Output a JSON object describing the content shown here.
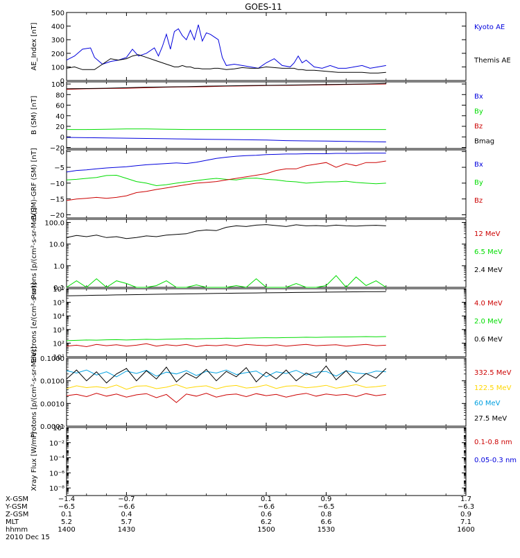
{
  "title": "GOES-11",
  "chart_data": [
    {
      "type": "line",
      "ylabel": "AE_Index [nT]",
      "ylim": [
        0,
        500
      ],
      "log": false,
      "yticks": [
        0,
        100,
        200,
        300,
        400,
        500
      ],
      "ytick_labels": [
        "0",
        "100",
        "200",
        "300",
        "400",
        "500"
      ],
      "x": [
        1400,
        1404,
        1408,
        1412,
        1414,
        1418,
        1422,
        1426,
        1430,
        1433,
        1436,
        1440,
        1444,
        1446,
        1448,
        1450,
        1452,
        1454,
        1456,
        1458,
        1460,
        1462,
        1464,
        1466,
        1468,
        1470,
        1472,
        1474,
        1476,
        1478,
        1480,
        1484,
        1488,
        1492,
        1496,
        1500,
        1504,
        1508,
        1512,
        1514,
        1516,
        1518,
        1520,
        1524,
        1528,
        1532,
        1536,
        1540,
        1544,
        1548,
        1552,
        1556,
        1560
      ],
      "series": [
        {
          "name": "Kyoto AE",
          "color": "#0000dd",
          "values": [
            150,
            180,
            230,
            240,
            170,
            120,
            140,
            150,
            170,
            230,
            180,
            200,
            240,
            180,
            250,
            340,
            230,
            360,
            380,
            330,
            300,
            370,
            300,
            410,
            290,
            350,
            340,
            320,
            300,
            170,
            110,
            120,
            110,
            100,
            90,
            130,
            160,
            110,
            100,
            130,
            180,
            130,
            150,
            100,
            90,
            110,
            90,
            90,
            100,
            110,
            90,
            100,
            110
          ]
        },
        {
          "name": "Themis AE",
          "color": "#000000",
          "values": [
            90,
            100,
            80,
            80,
            80,
            120,
            160,
            150,
            160,
            180,
            190,
            170,
            150,
            140,
            130,
            120,
            110,
            100,
            100,
            110,
            100,
            100,
            90,
            90,
            85,
            85,
            85,
            90,
            90,
            85,
            80,
            85,
            95,
            90,
            90,
            100,
            95,
            90,
            90,
            90,
            80,
            80,
            75,
            75,
            70,
            65,
            60,
            60,
            60,
            60,
            55,
            55,
            60
          ]
        }
      ]
    },
    {
      "type": "line",
      "ylabel": "B (SM) [nT]",
      "ylim": [
        -22,
        104
      ],
      "log": false,
      "yticks": [
        -20,
        0,
        20,
        40,
        60,
        80,
        100
      ],
      "ytick_labels": [
        "−20",
        "0",
        "20",
        "40",
        "60",
        "80",
        "100"
      ],
      "x": [
        1400,
        1410,
        1420,
        1430,
        1440,
        1450,
        1460,
        1470,
        1480,
        1490,
        1500,
        1510,
        1520,
        1530,
        1540,
        1550,
        1560
      ],
      "series": [
        {
          "name": "Bx",
          "color": "#0000dd",
          "values": [
            -1,
            -1.5,
            -2,
            -2.5,
            -3,
            -3.5,
            -4,
            -4.5,
            -5,
            -5.5,
            -6,
            -7,
            -7.5,
            -8,
            -8.5,
            -9,
            -9.5
          ]
        },
        {
          "name": "By",
          "color": "#00dd00",
          "values": [
            14,
            14,
            14.5,
            15,
            15,
            14.5,
            14,
            14,
            14,
            14,
            14,
            14,
            14,
            14,
            14,
            14,
            14
          ]
        },
        {
          "name": "Bz",
          "color": "#cc0000",
          "values": [
            90,
            91,
            91.5,
            92,
            93,
            94,
            94.5,
            95,
            96,
            96.5,
            97,
            97.5,
            98,
            98.5,
            99,
            99.5,
            100
          ]
        },
        {
          "name": "Bmag",
          "color": "#000000",
          "values": [
            91,
            91.5,
            92,
            93,
            94,
            94.5,
            95,
            96,
            96.5,
            97,
            97.5,
            98,
            98.5,
            99,
            99.5,
            100,
            101
          ]
        }
      ]
    },
    {
      "type": "line",
      "ylabel": "B(SM)-GRF (SM) [nT]",
      "ylim": [
        -21,
        0.5
      ],
      "log": false,
      "yticks": [
        -20,
        -15,
        -10,
        -5,
        0
      ],
      "ytick_labels": [
        "−20",
        "−15",
        "−10",
        "−5",
        "0"
      ],
      "x": [
        1400,
        1405,
        1410,
        1415,
        1420,
        1425,
        1430,
        1435,
        1440,
        1445,
        1450,
        1455,
        1460,
        1465,
        1470,
        1475,
        1480,
        1485,
        1490,
        1495,
        1500,
        1505,
        1510,
        1515,
        1520,
        1525,
        1530,
        1535,
        1540,
        1545,
        1550,
        1555,
        1560
      ],
      "series": [
        {
          "name": "Bx",
          "color": "#0000dd",
          "values": [
            -6.5,
            -6,
            -5.8,
            -5.5,
            -5.2,
            -5,
            -4.8,
            -4.5,
            -4.2,
            -4,
            -3.8,
            -3.6,
            -3.8,
            -3.4,
            -2.8,
            -2.2,
            -1.8,
            -1.5,
            -1.3,
            -1.2,
            -1,
            -0.9,
            -0.8,
            -0.8,
            -0.7,
            -0.7,
            -0.7,
            -0.6,
            -0.6,
            -0.6,
            -0.5,
            -0.5,
            -0.5
          ]
        },
        {
          "name": "By",
          "color": "#00dd00",
          "values": [
            -9,
            -8.8,
            -8.5,
            -8.2,
            -7.6,
            -7.5,
            -8.5,
            -9.5,
            -10,
            -10.8,
            -10.5,
            -10,
            -9.6,
            -9.2,
            -8.8,
            -8.5,
            -8.8,
            -9,
            -8.5,
            -8.4,
            -8.8,
            -9,
            -9.4,
            -9.6,
            -10,
            -9.8,
            -9.6,
            -9.6,
            -9.4,
            -9.8,
            -10,
            -10.2,
            -10
          ]
        },
        {
          "name": "Bz",
          "color": "#cc0000",
          "values": [
            -15.5,
            -15,
            -14.8,
            -14.5,
            -14.8,
            -14.5,
            -14,
            -13,
            -12.6,
            -12,
            -11.5,
            -11,
            -10.5,
            -10,
            -9.8,
            -9.5,
            -9,
            -8.5,
            -8,
            -7.5,
            -7,
            -6,
            -5.5,
            -5.5,
            -4.5,
            -4,
            -3.5,
            -5,
            -3.8,
            -4.5,
            -3.5,
            -3.5,
            -3
          ]
        }
      ]
    },
    {
      "type": "line",
      "ylabel": "Protons [p/(cm²-s-sr-MeV)]",
      "ylim": [
        0.1,
        140
      ],
      "log": true,
      "yticks": [
        0.1,
        1,
        10,
        100
      ],
      "ytick_labels": [
        "0.1",
        "1.0",
        "10.0",
        "100.0"
      ],
      "x": [
        1400,
        1405,
        1410,
        1415,
        1420,
        1425,
        1430,
        1435,
        1440,
        1445,
        1450,
        1455,
        1460,
        1465,
        1470,
        1475,
        1480,
        1485,
        1490,
        1495,
        1500,
        1505,
        1510,
        1515,
        1520,
        1525,
        1530,
        1535,
        1540,
        1545,
        1550,
        1555,
        1560
      ],
      "series": [
        {
          "name": "12 MeV",
          "color": "#cc0000",
          "values": [
            null,
            null,
            null,
            null,
            null,
            null,
            null,
            null,
            null,
            null,
            null,
            null,
            null,
            null,
            null,
            null,
            null,
            null,
            null,
            null,
            null,
            null,
            null,
            null,
            null,
            null,
            null,
            null,
            null,
            null,
            null,
            null,
            null
          ]
        },
        {
          "name": "6.5 MeV",
          "color": "#00dd00",
          "values": [
            0.1,
            0.2,
            0.1,
            0.25,
            0.1,
            0.2,
            0.15,
            0.1,
            0.1,
            0.12,
            0.2,
            0.1,
            0.1,
            0.13,
            0.1,
            0.1,
            0.1,
            0.12,
            0.1,
            0.25,
            0.1,
            0.1,
            0.1,
            0.15,
            0.1,
            0.1,
            0.12,
            0.35,
            0.1,
            0.3,
            0.12,
            0.2,
            0.1
          ]
        },
        {
          "name": "2.4 MeV",
          "color": "#000000",
          "values": [
            20,
            25,
            22,
            26,
            20,
            22,
            18,
            20,
            24,
            22,
            26,
            28,
            30,
            40,
            45,
            42,
            60,
            70,
            65,
            75,
            80,
            72,
            65,
            78,
            70,
            72,
            68,
            75,
            70,
            68,
            72,
            74,
            70
          ]
        }
      ]
    },
    {
      "type": "line",
      "ylabel": "Electrons [e/(cm²-s-sr)]",
      "ylim": [
        10,
        1000000
      ],
      "log": true,
      "yticks": [
        10,
        100,
        1000,
        10000,
        100000,
        1000000
      ],
      "ytick_labels": [
        "10¹",
        "10²",
        "10³",
        "10⁴",
        "10⁵",
        "10⁶"
      ],
      "x": [
        1400,
        1405,
        1410,
        1415,
        1420,
        1425,
        1430,
        1435,
        1440,
        1445,
        1450,
        1455,
        1460,
        1465,
        1470,
        1475,
        1480,
        1485,
        1490,
        1495,
        1500,
        1505,
        1510,
        1515,
        1520,
        1525,
        1530,
        1535,
        1540,
        1545,
        1550,
        1555,
        1560
      ],
      "series": [
        {
          "name": "4.0 MeV",
          "color": "#cc0000",
          "values": [
            60,
            70,
            55,
            80,
            65,
            75,
            60,
            70,
            90,
            60,
            75,
            65,
            80,
            55,
            70,
            65,
            75,
            60,
            80,
            70,
            65,
            75,
            60,
            70,
            80,
            65,
            70,
            75,
            60,
            70,
            80,
            65,
            70
          ]
        },
        {
          "name": "2.0 MeV",
          "color": "#00dd00",
          "values": [
            150,
            160,
            170,
            165,
            175,
            180,
            170,
            180,
            190,
            185,
            195,
            200,
            210,
            205,
            215,
            220,
            230,
            225,
            235,
            240,
            250,
            245,
            255,
            260,
            270,
            265,
            275,
            280,
            285,
            290,
            300,
            295,
            305
          ]
        },
        {
          "name": "0.6 MeV",
          "color": "#000000",
          "values": [
            300000,
            310000,
            320000,
            330000,
            340000,
            350000,
            360000,
            370000,
            380000,
            390000,
            400000,
            410000,
            420000,
            430000,
            440000,
            450000,
            460000,
            470000,
            480000,
            490000,
            500000,
            510000,
            520000,
            530000,
            540000,
            550000,
            560000,
            570000,
            580000,
            590000,
            600000,
            610000,
            620000
          ]
        }
      ]
    },
    {
      "type": "line",
      "ylabel": "Protons [p/(cm²-s-sr-MeV)]",
      "ylim": [
        0.0001,
        0.1
      ],
      "log": true,
      "yticks": [
        0.0001,
        0.001,
        0.01,
        0.1
      ],
      "ytick_labels": [
        "0.0001",
        "0.0010",
        "0.0100",
        "0.1000"
      ],
      "x": [
        1400,
        1405,
        1410,
        1415,
        1420,
        1425,
        1430,
        1435,
        1440,
        1445,
        1450,
        1455,
        1460,
        1465,
        1470,
        1475,
        1480,
        1485,
        1490,
        1495,
        1500,
        1505,
        1510,
        1515,
        1520,
        1525,
        1530,
        1535,
        1540,
        1545,
        1550,
        1555,
        1560
      ],
      "series": [
        {
          "name": "332.5 MeV",
          "color": "#cc0000",
          "values": [
            0.0022,
            0.0025,
            0.002,
            0.0028,
            0.0021,
            0.0026,
            0.0019,
            0.0024,
            0.0027,
            0.0018,
            0.0025,
            0.0011,
            0.0026,
            0.0021,
            0.0028,
            0.0019,
            0.0024,
            0.0026,
            0.002,
            0.0027,
            0.0022,
            0.0025,
            0.0019,
            0.0024,
            0.0028,
            0.0021,
            0.0026,
            0.0023,
            0.0025,
            0.002,
            0.0027,
            0.0022,
            0.0025
          ]
        },
        {
          "name": "122.5 MeV",
          "color": "#ffd700",
          "values": [
            0.0045,
            0.006,
            0.005,
            0.0055,
            0.0048,
            0.0065,
            0.0042,
            0.0058,
            0.006,
            0.0045,
            0.0052,
            0.0068,
            0.0047,
            0.0055,
            0.006,
            0.0044,
            0.0057,
            0.0062,
            0.0048,
            0.0053,
            0.0066,
            0.0046,
            0.0058,
            0.0061,
            0.0049,
            0.0054,
            0.0063,
            0.0047,
            0.0056,
            0.0068,
            0.0051,
            0.0055,
            0.0062
          ]
        },
        {
          "name": "60 MeV",
          "color": "#00a0e0",
          "values": [
            0.028,
            0.022,
            0.03,
            0.018,
            0.025,
            0.015,
            0.027,
            0.021,
            0.029,
            0.016,
            0.024,
            0.02,
            0.028,
            0.017,
            0.026,
            0.022,
            0.03,
            0.019,
            0.023,
            0.027,
            0.015,
            0.025,
            0.021,
            0.029,
            0.018,
            0.024,
            0.026,
            0.016,
            0.028,
            0.022,
            0.02,
            0.027,
            0.025
          ]
        },
        {
          "name": "27.5 MeV",
          "color": "#000000",
          "values": [
            0.012,
            0.03,
            0.01,
            0.025,
            0.008,
            0.02,
            0.035,
            0.01,
            0.028,
            0.012,
            0.04,
            0.009,
            0.022,
            0.013,
            0.032,
            0.01,
            0.026,
            0.015,
            0.038,
            0.009,
            0.024,
            0.012,
            0.03,
            0.01,
            0.022,
            0.014,
            0.045,
            0.011,
            0.028,
            0.009,
            0.021,
            0.013,
            0.035
          ]
        }
      ]
    },
    {
      "type": "line",
      "ylabel": "Xray Flux [W/m²]",
      "ylim": [
        1e-09,
        1
      ],
      "log": true,
      "yticks": [
        1e-08,
        1e-06,
        0.0001,
        0.01,
        1
      ],
      "ytick_labels": [
        "10⁻⁸",
        "10⁻⁶",
        "10⁻⁴",
        "10⁻²",
        "10⁰"
      ],
      "x": [],
      "series": [
        {
          "name": "0.1-0.8 nm",
          "color": "#cc0000",
          "values": []
        },
        {
          "name": "0.05-0.3 nm",
          "color": "#0000dd",
          "values": []
        }
      ]
    }
  ],
  "xaxis": {
    "row_labels": [
      "X-GSM",
      "Y-GSM",
      "Z-GSM",
      "MLT",
      "hhmm",
      "2010 Dec 15"
    ],
    "ticks": [
      {
        "x": 1400,
        "rows": [
          "−1.4",
          "−6.5",
          "0.1",
          "5.2",
          "1400"
        ]
      },
      {
        "x": 1430,
        "rows": [
          "−0.7",
          "−6.6",
          "0.4",
          "5.7",
          "1430"
        ]
      },
      {
        "x": 1500,
        "rows": [
          "0.1",
          "−6.6",
          "0.6",
          "6.2",
          "1500"
        ]
      },
      {
        "x": 1530,
        "rows": [
          "0.9",
          "−6.5",
          "0.8",
          "6.6",
          "1530"
        ]
      },
      {
        "x": 1600,
        "rows": [
          "1.7",
          "−6.3",
          "0.9",
          "7.1",
          "1600"
        ]
      }
    ]
  }
}
